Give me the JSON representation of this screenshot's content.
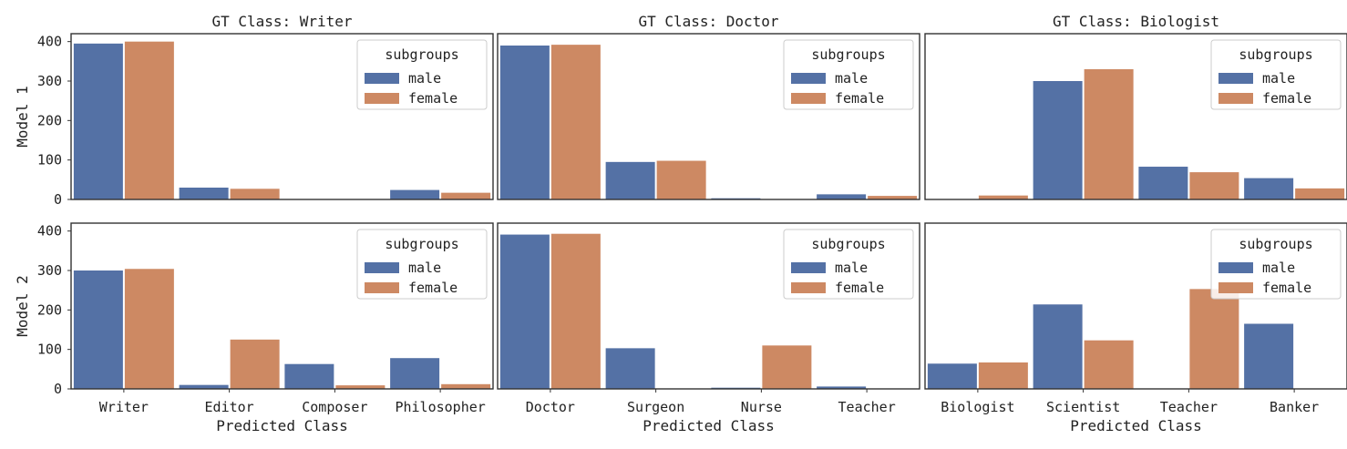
{
  "colors": {
    "male": "#5471a5",
    "female": "#cd8963",
    "frame": "#333333"
  },
  "ylim": [
    0,
    420
  ],
  "yticks": [
    0,
    100,
    200,
    300,
    400
  ],
  "legend_title": "subgroups",
  "xlabel": "Predicted Class",
  "row_labels": [
    "Model 1",
    "Model 2"
  ],
  "chart_data": [
    {
      "type": "bar",
      "title": "GT Class: Writer",
      "ylabel": "Model 1",
      "xlabel": "",
      "categories": [
        "Writer",
        "Editor",
        "Composer",
        "Philosopher"
      ],
      "series": [
        {
          "name": "male",
          "values": [
            395,
            30,
            0,
            24
          ]
        },
        {
          "name": "female",
          "values": [
            400,
            27,
            0,
            17
          ]
        }
      ],
      "legend": "top-right"
    },
    {
      "type": "bar",
      "title": "GT Class: Doctor",
      "ylabel": "",
      "xlabel": "",
      "categories": [
        "Doctor",
        "Surgeon",
        "Nurse",
        "Teacher"
      ],
      "series": [
        {
          "name": "male",
          "values": [
            390,
            95,
            3,
            13
          ]
        },
        {
          "name": "female",
          "values": [
            392,
            98,
            0,
            9
          ]
        }
      ],
      "legend": "top-right"
    },
    {
      "type": "bar",
      "title": "GT Class: Biologist",
      "ylabel": "",
      "xlabel": "",
      "categories": [
        "Biologist",
        "Scientist",
        "Teacher",
        "Banker"
      ],
      "series": [
        {
          "name": "male",
          "values": [
            0,
            300,
            83,
            54
          ]
        },
        {
          "name": "female",
          "values": [
            10,
            330,
            69,
            28
          ]
        }
      ],
      "legend": "top-right"
    },
    {
      "type": "bar",
      "title": "",
      "ylabel": "Model 2",
      "xlabel": "Predicted Class",
      "categories": [
        "Writer",
        "Editor",
        "Composer",
        "Philosopher"
      ],
      "series": [
        {
          "name": "male",
          "values": [
            300,
            10,
            63,
            78
          ]
        },
        {
          "name": "female",
          "values": [
            304,
            125,
            9,
            12
          ]
        }
      ],
      "legend": "top-right"
    },
    {
      "type": "bar",
      "title": "",
      "ylabel": "",
      "xlabel": "Predicted Class",
      "categories": [
        "Doctor",
        "Surgeon",
        "Nurse",
        "Teacher"
      ],
      "series": [
        {
          "name": "male",
          "values": [
            391,
            103,
            3,
            6
          ]
        },
        {
          "name": "female",
          "values": [
            393,
            0,
            110,
            0
          ]
        }
      ],
      "legend": "top-right"
    },
    {
      "type": "bar",
      "title": "",
      "ylabel": "",
      "xlabel": "Predicted Class",
      "categories": [
        "Biologist",
        "Scientist",
        "Teacher",
        "Banker"
      ],
      "series": [
        {
          "name": "male",
          "values": [
            64,
            214,
            0,
            165
          ]
        },
        {
          "name": "female",
          "values": [
            67,
            123,
            253,
            0
          ]
        }
      ],
      "legend": "top-right"
    }
  ]
}
